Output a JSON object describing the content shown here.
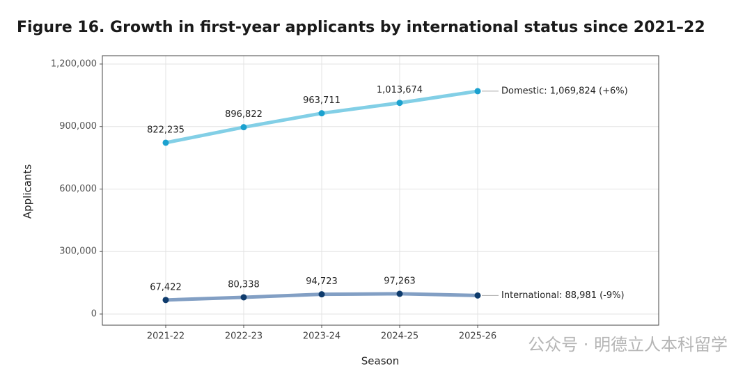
{
  "chart_data": {
    "type": "line",
    "title": "Figure 16. Growth in first-year applicants by international status since 2021–22",
    "xlabel": "Season",
    "ylabel": "Applicants",
    "categories": [
      "2021-22",
      "2022-23",
      "2023-24",
      "2024-25",
      "2025-26"
    ],
    "series": [
      {
        "label": "Domestic: 1,069,824 (+6%)",
        "color": "#82cfe6",
        "point_color": "#1ba1cf",
        "values": [
          822235,
          896822,
          963711,
          1013674,
          1069824
        ],
        "value_labels": [
          "822,235",
          "896,822",
          "963,711",
          "1,013,674",
          null
        ]
      },
      {
        "label": "International: 88,981 (-9%)",
        "color": "#829fc4",
        "point_color": "#0e3b6c",
        "values": [
          67422,
          80338,
          94723,
          97263,
          88981
        ],
        "value_labels": [
          "67,422",
          "80,338",
          "94,723",
          "97,263",
          null
        ]
      }
    ],
    "ylim": [
      -53500,
      1240000
    ],
    "yticks": [
      0,
      {
        "value": 300000,
        "label": "300,000"
      },
      {
        "value": 600000,
        "label": "600,000"
      },
      {
        "value": 900000,
        "label": "900,000"
      },
      {
        "value": 1200000,
        "label": "1,200,000"
      }
    ],
    "grid": true,
    "watermark": "公众号 · 明德立人本科留学"
  }
}
